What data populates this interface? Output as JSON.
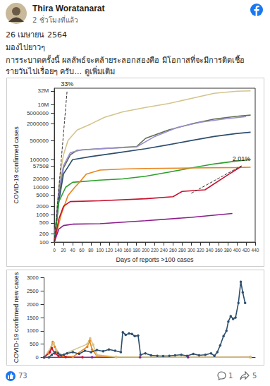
{
  "post": {
    "author": "Thira Woratanarat",
    "time": "2 ชั่วโมงที่แล้ว",
    "text": [
      "26 เมษายน 2564",
      "มองไปยาวๆ",
      "การระบาดครั้งนี้ ผลลัพธ์จะคล้ายระลอกสองคือ มีโอกาสที่จะมีการติดเชื้อ",
      "รายวันไปเรื่อยๆ ครับ..."
    ],
    "more": "ดูเพิ่มเติม",
    "reactions": 73,
    "comments": 1,
    "shares": 5
  },
  "chart_data": [
    {
      "type": "line",
      "x_label": "Days of reports >100 cases",
      "y_label": "COVID-19 confirmed cases",
      "log": "y",
      "grid": false,
      "xlim": [
        0,
        440
      ],
      "xticks": [
        0,
        20,
        40,
        60,
        80,
        100,
        120,
        140,
        160,
        180,
        200,
        220,
        240,
        260,
        280,
        300,
        320,
        340,
        360,
        380,
        400,
        420,
        440
      ],
      "ylim": [
        100,
        40000000
      ],
      "yticks": [
        100,
        200,
        500,
        1000,
        2000,
        5000,
        10000,
        20000,
        57508,
        100000,
        500000,
        2000000,
        5000000,
        {
          "value": 10000000,
          "label": "10M"
        },
        {
          "value": 32000000,
          "label": "32M"
        }
      ],
      "series": [
        {
          "color": "#d4c48c",
          "x": [
            0,
            5,
            10,
            15,
            20,
            30,
            50,
            80,
            110,
            150,
            200,
            250,
            300,
            350,
            400,
            430
          ],
          "values": [
            100,
            1000,
            10000,
            50000,
            150000,
            500000,
            1200000,
            2000000,
            3500000,
            5500000,
            8000000,
            11000000,
            17000000,
            26000000,
            31000000,
            32000000
          ]
        },
        {
          "color": "#5e6e4e",
          "x": [
            0,
            10,
            20,
            35,
            50,
            100,
            150,
            180,
            200,
            250,
            300,
            350,
            400,
            430
          ],
          "values": [
            100,
            5000,
            50000,
            150000,
            220000,
            250000,
            280000,
            300000,
            600000,
            1200000,
            2000000,
            3000000,
            3800000,
            4200000
          ]
        },
        {
          "color": "#9b8fd0",
          "x": [
            0,
            10,
            20,
            35,
            60,
            120,
            180,
            220,
            270,
            320,
            370,
            420
          ],
          "values": [
            100,
            8000,
            60000,
            180000,
            230000,
            260000,
            290000,
            700000,
            1500000,
            2300000,
            3000000,
            3700000
          ]
        },
        {
          "color": "#2d4e6e",
          "x": [
            0,
            10,
            20,
            40,
            80,
            140,
            200,
            250,
            300,
            350,
            400,
            430
          ],
          "values": [
            100,
            3000,
            30000,
            100000,
            130000,
            180000,
            250000,
            350000,
            500000,
            700000,
            900000,
            1000000
          ]
        },
        {
          "color": "#2ca02c",
          "x": [
            0,
            10,
            25,
            40,
            100,
            150,
            200,
            250,
            300,
            350,
            400,
            430
          ],
          "values": [
            100,
            3000,
            10000,
            15000,
            18000,
            20000,
            25000,
            35000,
            50000,
            70000,
            90000,
            100000
          ]
        },
        {
          "color": "#e8851d",
          "x": [
            0,
            15,
            30,
            45,
            55,
            70,
            100,
            150,
            200,
            300,
            400,
            430
          ],
          "values": [
            100,
            1000,
            5000,
            10000,
            15000,
            30000,
            42000,
            46000,
            48000,
            50000,
            52000,
            53000
          ]
        },
        {
          "color": "#c8102e",
          "x": [
            0,
            10,
            20,
            35,
            100,
            200,
            260,
            280,
            330,
            380,
            400,
            410
          ],
          "values": [
            100,
            700,
            2000,
            3000,
            3200,
            3800,
            4500,
            7000,
            8000,
            28000,
            45000,
            57508
          ]
        },
        {
          "color": "#8b1e8b",
          "x": [
            0,
            10,
            20,
            40,
            100,
            200,
            300,
            390
          ],
          "values": [
            100,
            300,
            400,
            450,
            470,
            600,
            800,
            1100
          ]
        }
      ],
      "annotations": [
        {
          "text": "33%",
          "x": [
            0,
            28
          ],
          "y": [
            100,
            32000000
          ]
        },
        {
          "text": "2.01%",
          "x": [
            300,
            410
          ],
          "y": [
            6000,
            60000
          ]
        }
      ]
    },
    {
      "type": "line",
      "y_label": "COVID-19 confirmed new cases",
      "grid": false,
      "tick_labels": "y",
      "xlim": [
        0,
        440
      ],
      "ylim": [
        0,
        3000
      ],
      "yticks": [
        0,
        500,
        1000,
        1500,
        2000,
        2500,
        3000
      ],
      "series": [
        {
          "color": "#8b1e8b",
          "marker": "circle",
          "x": [
            0,
            100,
            200,
            300,
            430
          ],
          "values": [
            0,
            5,
            5,
            5,
            10
          ]
        },
        {
          "color": "#e8851d",
          "marker": "circle",
          "x": [
            0,
            10,
            18,
            22,
            28,
            40,
            60,
            90,
            95,
            100,
            110,
            150,
            430
          ],
          "values": [
            0,
            150,
            580,
            400,
            200,
            50,
            20,
            400,
            620,
            300,
            50,
            10,
            5
          ]
        },
        {
          "color": "#d4c48c",
          "marker": "circle",
          "x": [
            0,
            15,
            20,
            25,
            35,
            90,
            96,
            102,
            110,
            150,
            430
          ],
          "values": [
            0,
            400,
            550,
            300,
            80,
            500,
            720,
            480,
            100,
            20,
            10
          ]
        },
        {
          "color": "#c8102e",
          "marker": "circle",
          "x": [
            0,
            12,
            16,
            22,
            30,
            45,
            80
          ],
          "values": [
            0,
            200,
            350,
            150,
            60,
            10,
            5
          ]
        },
        {
          "color": "#2d4e6e",
          "marker": "circle",
          "x": [
            0,
            10,
            16,
            23,
            29,
            35,
            41,
            48,
            60,
            73,
            85,
            98,
            110,
            123,
            135,
            148,
            160,
            164,
            170,
            177,
            183,
            189,
            196,
            201,
            211,
            223,
            236,
            248,
            261,
            273,
            286,
            298,
            311,
            323,
            336,
            348,
            355,
            361,
            367,
            374,
            380,
            384,
            389,
            394,
            399,
            405,
            410,
            414,
            419
          ],
          "values": [
            0,
            0,
            100,
            200,
            150,
            80,
            100,
            150,
            200,
            130,
            250,
            200,
            280,
            230,
            300,
            250,
            200,
            950,
            850,
            900,
            880,
            800,
            820,
            100,
            150,
            80,
            60,
            50,
            60,
            80,
            100,
            60,
            130,
            80,
            100,
            150,
            60,
            200,
            450,
            800,
            1000,
            1350,
            1550,
            1450,
            1500,
            2050,
            2850,
            2450,
            2050
          ]
        }
      ]
    }
  ]
}
